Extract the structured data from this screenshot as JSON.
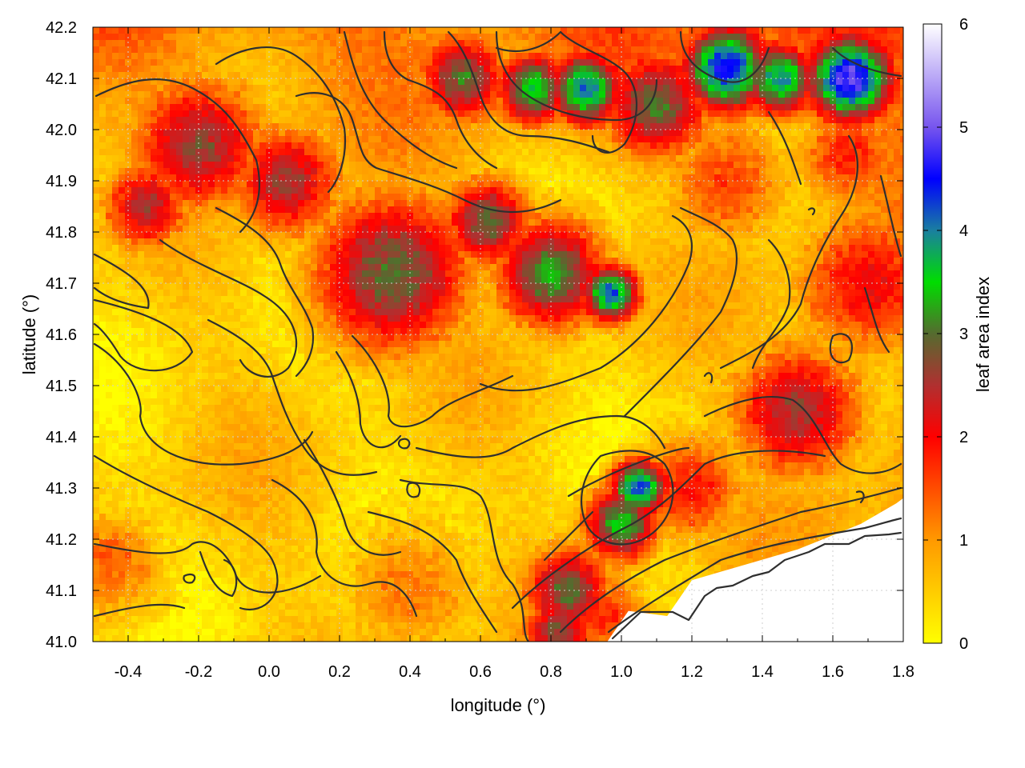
{
  "chart_data": {
    "type": "heatmap",
    "title": "",
    "xlabel": "longitude (°)",
    "ylabel": "latitude (°)",
    "xlim": [
      -0.5,
      1.8
    ],
    "ylim": [
      41.0,
      42.2
    ],
    "x_ticks": [
      "-0.4",
      "-0.2",
      "0.0",
      "0.2",
      "0.4",
      "0.6",
      "0.8",
      "1.0",
      "1.2",
      "1.4",
      "1.6",
      "1.8"
    ],
    "y_ticks": [
      "41.0",
      "41.1",
      "41.2",
      "41.3",
      "41.4",
      "41.5",
      "41.6",
      "41.7",
      "41.8",
      "41.9",
      "42.0",
      "42.1",
      "42.2"
    ],
    "grid": true,
    "colorbar": {
      "label": "leaf area index",
      "range": [
        0,
        6
      ],
      "ticks": [
        "0",
        "1",
        "2",
        "3",
        "4",
        "5",
        "6"
      ],
      "stops": [
        {
          "value": 0,
          "color": "#ffff00"
        },
        {
          "value": 1,
          "color": "#ff9900"
        },
        {
          "value": 2,
          "color": "#ff0000"
        },
        {
          "value": 2.5,
          "color": "#b03030"
        },
        {
          "value": 3,
          "color": "#556b2f"
        },
        {
          "value": 3.5,
          "color": "#00dd00"
        },
        {
          "value": 4,
          "color": "#1a7fa0"
        },
        {
          "value": 4.5,
          "color": "#0000ff"
        },
        {
          "value": 5,
          "color": "#7755ee"
        },
        {
          "value": 6,
          "color": "#ffffff"
        }
      ]
    },
    "features": [
      {
        "lon": 0.35,
        "lat": 41.72,
        "lai": 3.0,
        "radius": 0.22
      },
      {
        "lon": 0.8,
        "lat": 41.72,
        "lai": 3.3,
        "radius": 0.15
      },
      {
        "lon": 0.97,
        "lat": 41.68,
        "lai": 4.2,
        "radius": 0.08
      },
      {
        "lon": 0.62,
        "lat": 41.82,
        "lai": 3.0,
        "radius": 0.12
      },
      {
        "lon": -0.2,
        "lat": 41.97,
        "lai": 2.7,
        "radius": 0.18
      },
      {
        "lon": -0.35,
        "lat": 41.85,
        "lai": 2.5,
        "radius": 0.12
      },
      {
        "lon": 0.05,
        "lat": 41.9,
        "lai": 2.6,
        "radius": 0.15
      },
      {
        "lon": 1.05,
        "lat": 41.3,
        "lai": 4.3,
        "radius": 0.08
      },
      {
        "lon": 1.0,
        "lat": 41.23,
        "lai": 3.5,
        "radius": 0.1
      },
      {
        "lon": 0.85,
        "lat": 41.1,
        "lai": 3.0,
        "radius": 0.12
      },
      {
        "lon": 0.82,
        "lat": 41.02,
        "lai": 2.8,
        "radius": 0.1
      },
      {
        "lon": 1.3,
        "lat": 42.12,
        "lai": 4.6,
        "radius": 0.12
      },
      {
        "lon": 1.65,
        "lat": 42.1,
        "lai": 5.0,
        "radius": 0.12
      },
      {
        "lon": 1.45,
        "lat": 42.1,
        "lai": 4.0,
        "radius": 0.1
      },
      {
        "lon": 0.9,
        "lat": 42.08,
        "lai": 4.2,
        "radius": 0.1
      },
      {
        "lon": 0.75,
        "lat": 42.08,
        "lai": 3.6,
        "radius": 0.1
      },
      {
        "lon": 0.55,
        "lat": 42.1,
        "lai": 3.0,
        "radius": 0.12
      },
      {
        "lon": 1.1,
        "lat": 42.05,
        "lai": 3.0,
        "radius": 0.15
      },
      {
        "lon": 1.5,
        "lat": 41.45,
        "lai": 2.6,
        "radius": 0.18
      },
      {
        "lon": 1.7,
        "lat": 41.7,
        "lai": 2.1,
        "radius": 0.2
      },
      {
        "lon": 1.65,
        "lat": 41.95,
        "lai": 1.8,
        "radius": 0.15
      },
      {
        "lon": 1.3,
        "lat": 41.9,
        "lai": 1.6,
        "radius": 0.18
      },
      {
        "lon": 1.2,
        "lat": 41.3,
        "lai": 1.9,
        "radius": 0.15
      },
      {
        "lon": 0.95,
        "lat": 41.05,
        "lai": 1.8,
        "radius": 0.12
      },
      {
        "lon": -0.45,
        "lat": 41.15,
        "lai": 1.4,
        "radius": 0.15
      },
      {
        "lon": 0.4,
        "lat": 41.1,
        "lai": 1.2,
        "radius": 0.2
      }
    ],
    "sea_boundary": [
      [
        0.96,
        41.0
      ],
      [
        1.02,
        41.06
      ],
      [
        1.13,
        41.05
      ],
      [
        1.2,
        41.12
      ],
      [
        1.35,
        41.15
      ],
      [
        1.5,
        41.18
      ],
      [
        1.68,
        41.23
      ],
      [
        1.78,
        41.27
      ],
      [
        1.8,
        41.28
      ]
    ]
  }
}
